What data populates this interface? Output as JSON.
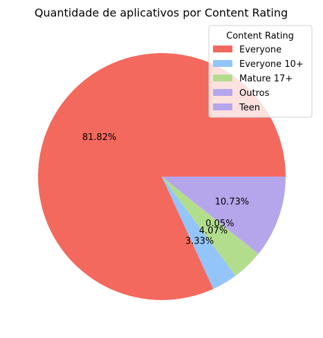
{
  "chart_data": {
    "type": "pie",
    "title": "Quantidade de aplicativos por Content Rating",
    "legend_title": "Content Rating",
    "legend_position": "top-right",
    "slices": [
      {
        "label": "Everyone",
        "value": 81.82,
        "pct_label": "81.82%",
        "color": "#f4695e"
      },
      {
        "label": "Everyone 10+",
        "value": 3.33,
        "pct_label": "3.33%",
        "color": "#93c5fb"
      },
      {
        "label": "Mature 17+",
        "value": 4.07,
        "pct_label": "4.07%",
        "color": "#b2dd8d"
      },
      {
        "label": "Outros",
        "value": 0.05,
        "pct_label": "0.05%",
        "color": "#b5a6ec"
      },
      {
        "label": "Teen",
        "value": 10.73,
        "pct_label": "10.73%",
        "color": "#b5a6ec"
      }
    ]
  }
}
